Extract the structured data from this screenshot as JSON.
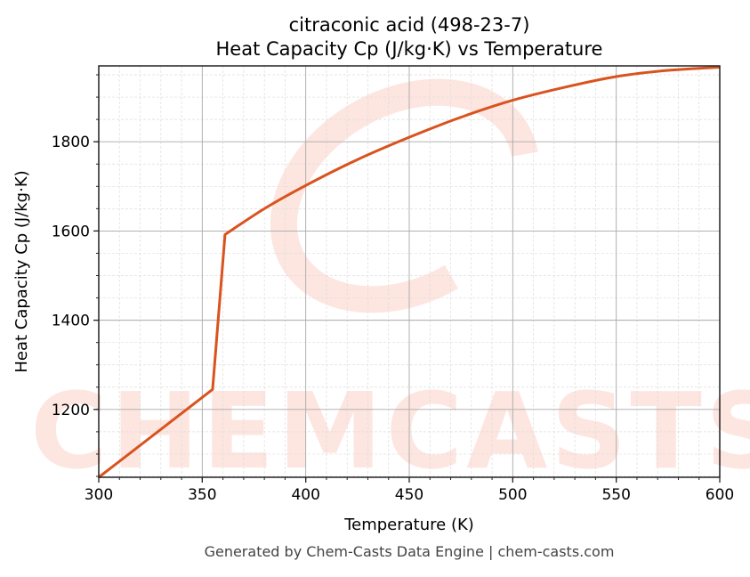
{
  "chart_data": {
    "type": "line",
    "title": "citraconic acid (498-23-7)",
    "subtitle": "Heat Capacity Cp (J/kg·K) vs Temperature",
    "xlabel": "Temperature (K)",
    "ylabel": "Heat Capacity Cp (J/kg·K)",
    "xlim": [
      300,
      600
    ],
    "ylim": [
      1048,
      1970
    ],
    "xticks": [
      300,
      350,
      400,
      450,
      500,
      550,
      600
    ],
    "yticks": [
      1200,
      1400,
      1600,
      1800
    ],
    "grid": true,
    "line_color": "#d9531e",
    "series": [
      {
        "x": [
          300,
          355,
          361,
          380,
          400,
          425,
          450,
          475,
          500,
          525,
          550,
          575,
          600
        ],
        "y": [
          1048,
          1245,
          1592,
          1650,
          1702,
          1760,
          1810,
          1855,
          1893,
          1922,
          1946,
          1960,
          1967
        ]
      }
    ]
  },
  "watermark": "CHEMCASTS",
  "footer": "Generated by Chem-Casts Data Engine | chem-casts.com"
}
